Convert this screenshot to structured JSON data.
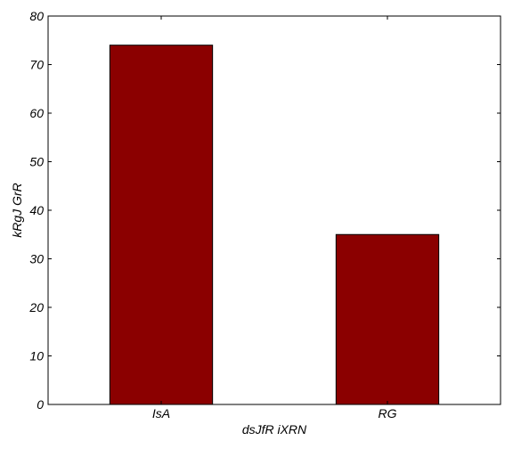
{
  "chart_data": {
    "type": "bar",
    "title": "",
    "xlabel": "dsJfR iXRN",
    "ylabel": "kRgJ GrR",
    "categories": [
      "IsA",
      "RG"
    ],
    "values": [
      74,
      35
    ],
    "ylim": [
      0,
      80
    ],
    "yticks": [
      0,
      10,
      20,
      30,
      40,
      50,
      60,
      70,
      80
    ],
    "grid": false,
    "legend": "none",
    "bar_color": "#8b0000"
  }
}
